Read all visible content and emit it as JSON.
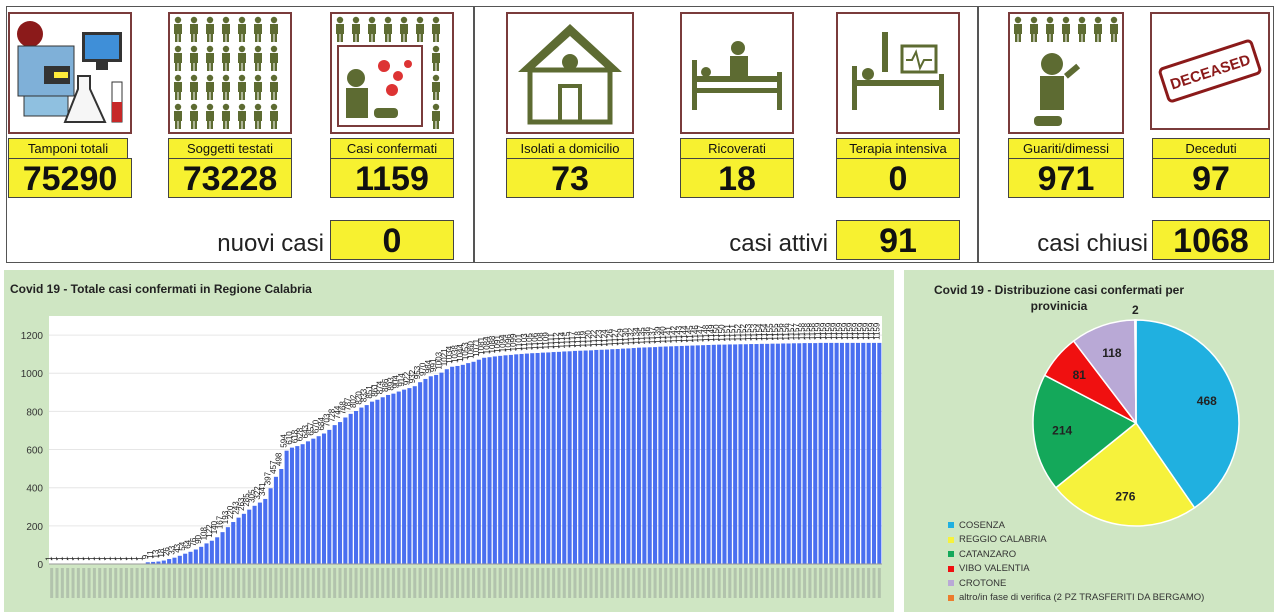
{
  "stats": {
    "tamponi_label": "Tamponi totali",
    "tamponi_value": "75290",
    "soggetti_label": "Soggetti testati",
    "soggetti_value": "73228",
    "casi_label": "Casi confermati",
    "casi_value": "1159",
    "isolati_label": "Isolati a domicilio",
    "isolati_value": "73",
    "ricoverati_label": "Ricoverati",
    "ricoverati_value": "18",
    "terapia_label": "Terapia intensiva",
    "terapia_value": "0",
    "guariti_label": "Guariti/dimessi",
    "guariti_value": "971",
    "deceduti_label": "Deceduti",
    "deceduti_value": "97"
  },
  "summary": {
    "nuovi_label": "nuovi casi",
    "nuovi_value": "0",
    "attivi_label": "casi attivi",
    "attivi_value": "91",
    "chiusi_label": "casi chiusi",
    "chiusi_value": "1068"
  },
  "stamp_text": "DECEASED",
  "colors": {
    "panel_bg": "#cfe6c3",
    "bar": "#4a6ff0",
    "label_bg": "#f7f130",
    "icon": "#5d6b32"
  },
  "chart_data": [
    {
      "type": "bar",
      "title": "Covid 19 - Totale casi confermati in Regione Calabria",
      "xlabel": "",
      "ylabel": "",
      "ylim": [
        0,
        1300
      ],
      "yticks": [
        0,
        200,
        400,
        600,
        800,
        1000,
        1200
      ],
      "values": [
        1,
        1,
        1,
        1,
        1,
        1,
        1,
        1,
        1,
        1,
        1,
        1,
        1,
        1,
        1,
        1,
        1,
        1,
        9,
        11,
        13,
        18,
        26,
        33,
        43,
        54,
        64,
        76,
        90,
        108,
        122,
        140,
        167,
        193,
        220,
        243,
        263,
        285,
        305,
        322,
        341,
        397,
        457,
        498,
        594,
        610,
        618,
        628,
        643,
        657,
        670,
        684,
        703,
        728,
        744,
        768,
        787,
        802,
        820,
        833,
        851,
        861,
        874,
        886,
        893,
        904,
        914,
        922,
        932,
        953,
        970,
        984,
        991,
        1003,
        1021,
        1034,
        1038,
        1044,
        1053,
        1060,
        1071,
        1081,
        1084,
        1088,
        1091,
        1094,
        1096,
        1099,
        1101,
        1103,
        1105,
        1106,
        1108,
        1109,
        1111,
        1112,
        1114,
        1115,
        1117,
        1118,
        1119,
        1120,
        1122,
        1123,
        1124,
        1126,
        1127,
        1129,
        1130,
        1132,
        1134,
        1135,
        1136,
        1137,
        1139,
        1140,
        1141,
        1142,
        1143,
        1144,
        1145,
        1146,
        1147,
        1148,
        1149,
        1150,
        1150,
        1151,
        1151,
        1152,
        1152,
        1153,
        1153,
        1154,
        1154,
        1155,
        1155,
        1156,
        1156,
        1157,
        1157,
        1158,
        1158,
        1158,
        1159,
        1159,
        1159,
        1159,
        1159,
        1159,
        1159,
        1159,
        1159,
        1159,
        1159,
        1159
      ]
    },
    {
      "type": "pie",
      "title": "Covid 19 - Distribuzione casi confermati per provinicia",
      "slices": [
        {
          "label": "COSENZA",
          "value": 468,
          "color": "#20b0e0"
        },
        {
          "label": "REGGIO CALABRIA",
          "value": 276,
          "color": "#f6f23c"
        },
        {
          "label": "CATANZARO",
          "value": 214,
          "color": "#14a85a"
        },
        {
          "label": "VIBO VALENTIA",
          "value": 81,
          "color": "#f01010"
        },
        {
          "label": "CROTONE",
          "value": 118,
          "color": "#b9a9d6"
        },
        {
          "label": "altro/in fase di verifica (2 PZ TRASFERITI DA BERGAMO)",
          "value": 2,
          "color": "#ec7c2c"
        }
      ],
      "legend_position": "bottom-left"
    }
  ]
}
